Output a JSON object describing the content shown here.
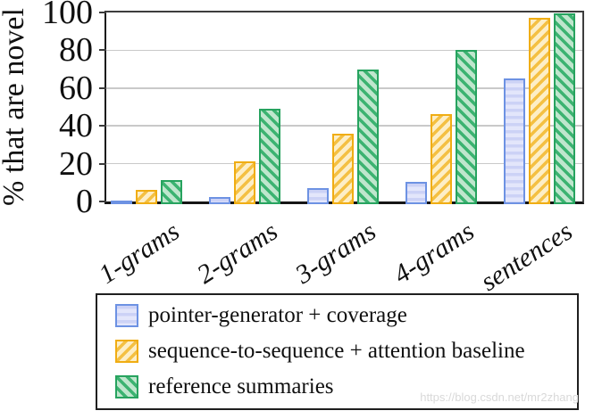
{
  "watermark": "https://blog.csdn.net/mr2zhang",
  "chart_data": {
    "type": "bar",
    "title": "",
    "xlabel": "",
    "ylabel": "% that are novel",
    "categories": [
      "1-grams",
      "2-grams",
      "3-grams",
      "4-grams",
      "sentences"
    ],
    "ylim": [
      0,
      100
    ],
    "yticks": [
      0,
      20,
      40,
      60,
      80,
      100
    ],
    "grid": "horizontal",
    "legend_position": "below-chart-boxed",
    "series": [
      {
        "name": "pointer-generator + coverage",
        "values": [
          0.5,
          2.5,
          7,
          10.5,
          65
        ],
        "pattern": "horizontal",
        "fill": "#e3e6fb",
        "stripe": "#ccd2f6",
        "border": "#6d92e3"
      },
      {
        "name": "sequence-to-sequence + attention baseline",
        "values": [
          6,
          21,
          36,
          46,
          97
        ],
        "pattern": "diagonal-up",
        "fill": "#fdeec6",
        "stripe": "#f4c043",
        "border": "#f0ad13"
      },
      {
        "name": "reference summaries",
        "values": [
          11.5,
          49,
          70,
          80,
          99.5
        ],
        "pattern": "diagonal-down",
        "fill": "#bfe6cd",
        "stripe": "#3cb371",
        "border": "#27a35f"
      }
    ]
  }
}
